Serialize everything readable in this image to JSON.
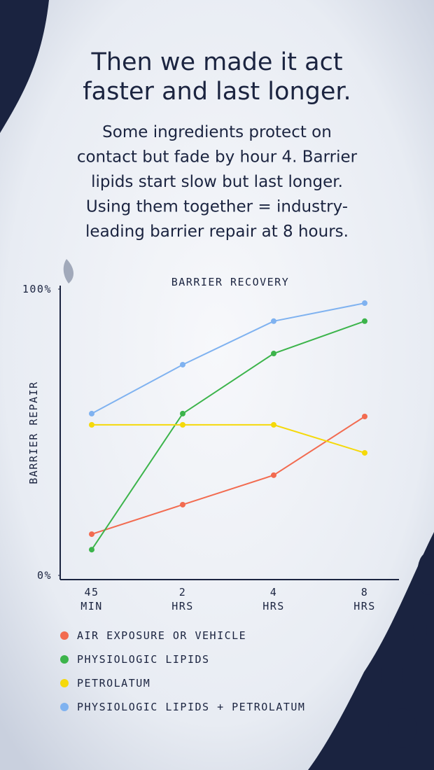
{
  "chart_data": {
    "type": "line",
    "title_lines": [
      "Then we made it act",
      "faster and last longer."
    ],
    "subtitle_lines": [
      "Some ingredients protect on",
      "contact but fade by hour 4. Barrier",
      "lipids start slow but last longer.",
      "Using them together = industry-",
      "leading  barrier repair at 8 hours."
    ],
    "chart_title": "BARRIER RECOVERY",
    "y_label": "BARRIER REPAIR",
    "categories": [
      [
        "45",
        "MIN"
      ],
      [
        "2",
        "HRS"
      ],
      [
        "4",
        "HRS"
      ],
      [
        "8",
        "HRS"
      ]
    ],
    "ylim": [
      0,
      100
    ],
    "yticks": [
      {
        "value": 0,
        "label": "0%"
      },
      {
        "value": 100,
        "label": "100%"
      }
    ],
    "series": [
      {
        "name": "AIR EXPOSURE OR VEHICLE",
        "color": "#f26b50",
        "values": [
          14.4,
          24.7,
          35,
          55.5
        ]
      },
      {
        "name": "PHYSIOLOGIC LIPIDS",
        "color": "#3cb44b",
        "values": [
          9,
          56.5,
          77.5,
          88.8
        ]
      },
      {
        "name": "PETROLATUM",
        "color": "#f5d90a",
        "values": [
          52.6,
          52.6,
          52.6,
          42.8
        ]
      },
      {
        "name": "PHYSIOLOGIC LIPIDS + PETROLATUM",
        "color": "#7fb2f0",
        "values": [
          56.5,
          73.6,
          88.8,
          95.1
        ]
      }
    ]
  }
}
